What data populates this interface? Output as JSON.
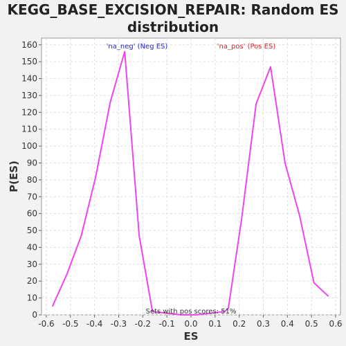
{
  "chart_data": {
    "type": "line",
    "title_line1": "KEGG_BASE_EXCISION_REPAIR: Random ES",
    "title_line2": "distribution",
    "xlabel": "ES",
    "ylabel": "P(ES)",
    "xlim": [
      -0.62,
      0.62
    ],
    "ylim": [
      0,
      164
    ],
    "xticks": [
      -0.6,
      -0.5,
      -0.4,
      -0.3,
      -0.2,
      -0.1,
      0.0,
      0.1,
      0.2,
      0.3,
      0.4,
      0.5,
      0.6
    ],
    "xtick_labels": [
      "-0.6",
      "-0.5",
      "-0.4",
      "-0.3",
      "-0.2",
      "-0.1",
      "0.0",
      "0.1",
      "0.2",
      "0.3",
      "0.4",
      "0.5",
      "0.6"
    ],
    "yticks": [
      0,
      10,
      20,
      30,
      40,
      50,
      60,
      70,
      80,
      90,
      100,
      110,
      120,
      130,
      140,
      150,
      160
    ],
    "grid": true,
    "line_color": "#ee44ee",
    "annotations": {
      "neg_label": "'na_neg' (Neg ES)",
      "pos_label": "'na_pos' (Pos ES)",
      "footer": "Sets with pos scores: 51%"
    },
    "annotation_colors": {
      "neg": "#2222dd",
      "pos": "#dd2222",
      "footer": "#333333"
    },
    "series": [
      {
        "x": [
          -0.575,
          -0.515,
          -0.455,
          -0.395,
          -0.335,
          -0.275,
          -0.215,
          -0.16,
          -0.1,
          -0.04,
          0.02,
          0.08,
          0.14
        ],
        "y": [
          5,
          24,
          47,
          82,
          126,
          156,
          47,
          2,
          1,
          0,
          0,
          1,
          2
        ]
      },
      {
        "x": [
          0.14,
          0.155,
          0.21,
          0.27,
          0.33,
          0.39,
          0.45,
          0.51,
          0.57
        ],
        "y": [
          2,
          4,
          57,
          125,
          147,
          90,
          59,
          19,
          11
        ]
      }
    ]
  }
}
